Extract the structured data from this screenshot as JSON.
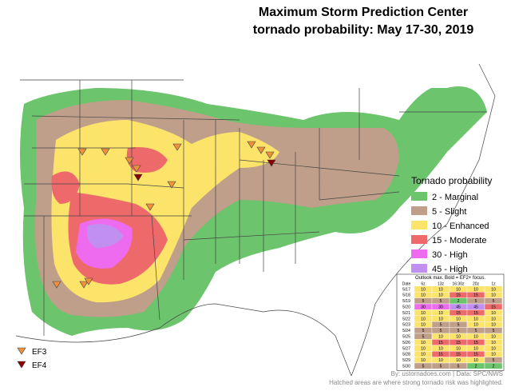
{
  "title": [
    "Maximum Storm Prediction Center",
    "tornado probability: May 17-30, 2019"
  ],
  "legend": {
    "title": "Tornado probability",
    "items": [
      {
        "value": 2,
        "label": "2 - Marginal",
        "color": "#6cc46c"
      },
      {
        "value": 5,
        "label": "5 - Slight",
        "color": "#bf9f8a"
      },
      {
        "value": 10,
        "label": "10 - Enhanced",
        "color": "#fce36a"
      },
      {
        "value": 15,
        "label": "15 - Moderate",
        "color": "#ee6a6a"
      },
      {
        "value": 30,
        "label": "30 - High",
        "color": "#ee6aee"
      },
      {
        "value": 45,
        "label": "45 - High",
        "color": "#c08ff0"
      }
    ]
  },
  "markers": [
    {
      "label": "EF3",
      "color": "#f0913c"
    },
    {
      "label": "EF4",
      "color": "#8b0000"
    }
  ],
  "table": {
    "title": "Outlook max. Bold = EF2+ focus.",
    "columns": [
      "Date",
      "6z",
      "13z",
      "16:30z",
      "20z",
      "1z"
    ],
    "rows": [
      [
        "5/17",
        10,
        10,
        10,
        10,
        10
      ],
      [
        "5/18",
        10,
        10,
        15,
        15,
        10
      ],
      [
        "5/19",
        5,
        5,
        2,
        5,
        5
      ],
      [
        "5/20",
        30,
        30,
        45,
        45,
        15
      ],
      [
        "5/21",
        10,
        10,
        15,
        15,
        10
      ],
      [
        "5/22",
        10,
        10,
        10,
        10,
        10
      ],
      [
        "5/23",
        10,
        5,
        5,
        10,
        10
      ],
      [
        "5/24",
        5,
        5,
        5,
        5,
        5
      ],
      [
        "5/25",
        5,
        10,
        10,
        10,
        10
      ],
      [
        "5/26",
        10,
        15,
        15,
        15,
        10
      ],
      [
        "5/27",
        10,
        10,
        10,
        10,
        10
      ],
      [
        "5/28",
        10,
        15,
        15,
        15,
        10
      ],
      [
        "5/29",
        10,
        10,
        10,
        10,
        5
      ],
      [
        "5/30",
        5,
        5,
        5,
        2,
        2
      ]
    ]
  },
  "footer": [
    "By: ustornadoes.com | Data: SPC/NWS",
    "Hatched areas are where strong tornado risk was highlighted."
  ]
}
